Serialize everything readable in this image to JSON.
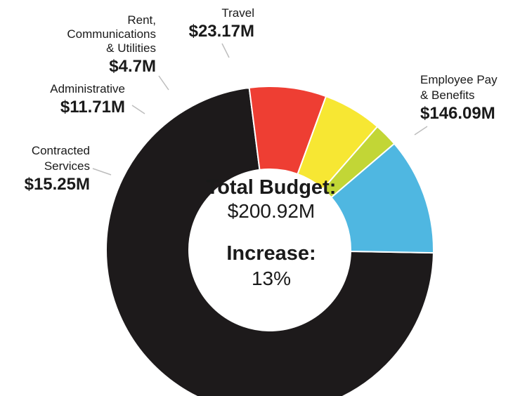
{
  "chart_data": {
    "type": "pie",
    "variant": "donut",
    "title": "",
    "slices": [
      {
        "name": "Employee Pay & Benefits",
        "name_lines": [
          "Employee Pay",
          "& Benefits"
        ],
        "value": 146.09,
        "value_label": "$146.09M",
        "color": "#1d1a1b"
      },
      {
        "name": "Contracted Services",
        "name_lines": [
          "Contracted",
          "Services"
        ],
        "value": 15.25,
        "value_label": "$15.25M",
        "color": "#ee3e33"
      },
      {
        "name": "Administrative",
        "name_lines": [
          "Administrative"
        ],
        "value": 11.71,
        "value_label": "$11.71M",
        "color": "#f7e733"
      },
      {
        "name": "Rent, Communications & Utilities",
        "name_lines": [
          "Rent,",
          "Communications",
          "& Utilities"
        ],
        "value": 4.7,
        "value_label": "$4.7M",
        "color": "#c2d636"
      },
      {
        "name": "Travel",
        "name_lines": [
          "Travel"
        ],
        "value": 23.17,
        "value_label": "$23.17M",
        "color": "#4fb7e1"
      }
    ],
    "center": {
      "total_label": "Total Budget:",
      "total_value": "$200.92M",
      "increase_label": "Increase:",
      "increase_value": "13%"
    }
  }
}
